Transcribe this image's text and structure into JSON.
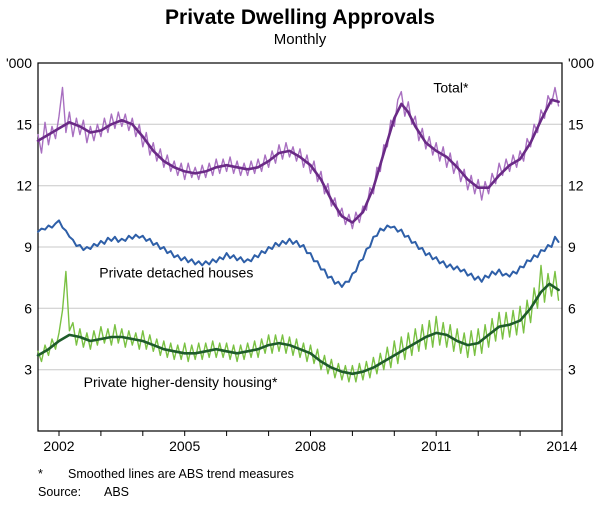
{
  "footnotes": {
    "marker": "*",
    "note": "Smoothed lines are ABS trend measures",
    "source_label": "Source:",
    "source_value": "ABS"
  },
  "chart_data": {
    "type": "line",
    "title": "Private Dwelling Approvals",
    "subtitle": "Monthly",
    "unit_left": "'000",
    "unit_right": "'000",
    "ylim": [
      0,
      18
    ],
    "yticks": [
      3,
      6,
      9,
      12,
      15
    ],
    "xlim": [
      2001.5,
      2014.0
    ],
    "xticks": [
      2002,
      2005,
      2008,
      2011,
      2014
    ],
    "grid_color": "#c8c8c8",
    "x_start": 2001.5,
    "x_step": 0.0833333,
    "series": [
      {
        "id": "total-monthly",
        "name": "Total (monthly)",
        "color": "#a86fc0",
        "width": 1.4,
        "values": [
          14.5,
          13.6,
          15.1,
          14.0,
          14.9,
          14.3,
          15.4,
          16.8,
          14.6,
          15.6,
          14.4,
          15.3,
          14.5,
          15.2,
          14.1,
          14.9,
          14.2,
          15.0,
          14.4,
          15.3,
          14.6,
          15.5,
          14.8,
          15.6,
          14.9,
          15.5,
          14.7,
          15.3,
          14.4,
          15.0,
          13.9,
          14.6,
          13.5,
          14.1,
          13.2,
          13.8,
          12.9,
          13.5,
          12.7,
          13.2,
          12.5,
          13.1,
          12.3,
          13.1,
          12.4,
          12.9,
          12.3,
          13.0,
          12.4,
          13.1,
          12.5,
          13.3,
          12.6,
          13.3,
          12.7,
          13.4,
          12.6,
          13.2,
          12.5,
          13.1,
          12.5,
          13.2,
          12.6,
          13.3,
          12.7,
          13.5,
          12.9,
          13.7,
          13.1,
          14.0,
          13.3,
          14.1,
          13.4,
          13.9,
          13.2,
          13.8,
          12.9,
          13.5,
          12.6,
          13.2,
          12.2,
          12.7,
          11.6,
          12.1,
          11.0,
          11.4,
          10.5,
          10.9,
          10.1,
          10.6,
          9.9,
          10.7,
          10.2,
          11.0,
          10.8,
          11.9,
          11.6,
          12.9,
          12.7,
          14.0,
          13.9,
          15.2,
          14.9,
          16.2,
          16.6,
          15.4,
          16.1,
          15.0,
          15.4,
          14.2,
          14.8,
          13.8,
          14.4,
          13.5,
          14.1,
          13.2,
          13.9,
          12.9,
          13.6,
          12.6,
          13.2,
          12.2,
          12.8,
          11.8,
          12.5,
          11.6,
          12.3,
          11.3,
          12.2,
          11.6,
          12.6,
          12.1,
          13.1,
          12.5,
          13.3,
          12.7,
          13.5,
          12.9,
          13.7,
          13.2,
          14.3,
          13.9,
          15.0,
          14.6,
          15.7,
          15.3,
          16.4,
          16.0,
          16.8,
          15.9
        ]
      },
      {
        "id": "total-trend",
        "name": "Total (ABS trend)",
        "color": "#6a2a86",
        "width": 2.6,
        "points": [
          [
            2001.5,
            14.2
          ],
          [
            2001.75,
            14.5
          ],
          [
            2002.0,
            14.8
          ],
          [
            2002.25,
            15.1
          ],
          [
            2002.5,
            14.9
          ],
          [
            2002.75,
            14.6
          ],
          [
            2003.0,
            14.7
          ],
          [
            2003.25,
            15.0
          ],
          [
            2003.5,
            15.2
          ],
          [
            2003.75,
            15.0
          ],
          [
            2004.0,
            14.4
          ],
          [
            2004.25,
            13.7
          ],
          [
            2004.5,
            13.2
          ],
          [
            2004.75,
            12.9
          ],
          [
            2005.0,
            12.7
          ],
          [
            2005.25,
            12.6
          ],
          [
            2005.5,
            12.7
          ],
          [
            2005.75,
            12.9
          ],
          [
            2006.0,
            13.0
          ],
          [
            2006.25,
            12.9
          ],
          [
            2006.5,
            12.8
          ],
          [
            2006.75,
            12.9
          ],
          [
            2007.0,
            13.2
          ],
          [
            2007.25,
            13.6
          ],
          [
            2007.5,
            13.7
          ],
          [
            2007.75,
            13.4
          ],
          [
            2008.0,
            13.0
          ],
          [
            2008.25,
            12.3
          ],
          [
            2008.5,
            11.3
          ],
          [
            2008.75,
            10.5
          ],
          [
            2009.0,
            10.2
          ],
          [
            2009.25,
            10.7
          ],
          [
            2009.5,
            11.9
          ],
          [
            2009.75,
            13.6
          ],
          [
            2010.0,
            15.3
          ],
          [
            2010.17,
            16.0
          ],
          [
            2010.33,
            15.6
          ],
          [
            2010.5,
            14.9
          ],
          [
            2010.75,
            14.1
          ],
          [
            2011.0,
            13.7
          ],
          [
            2011.25,
            13.4
          ],
          [
            2011.5,
            12.9
          ],
          [
            2011.75,
            12.3
          ],
          [
            2012.0,
            11.9
          ],
          [
            2012.25,
            11.9
          ],
          [
            2012.5,
            12.5
          ],
          [
            2012.75,
            13.0
          ],
          [
            2013.0,
            13.3
          ],
          [
            2013.25,
            14.1
          ],
          [
            2013.5,
            15.2
          ],
          [
            2013.75,
            16.2
          ],
          [
            2013.92,
            16.1
          ]
        ]
      },
      {
        "id": "detached",
        "name": "Private detached houses",
        "color": "#2e5fa8",
        "width": 2.0,
        "values": [
          9.75,
          9.9,
          9.85,
          10.05,
          9.95,
          10.15,
          10.3,
          9.95,
          9.8,
          9.5,
          9.35,
          9.05,
          9.1,
          8.85,
          9.0,
          8.9,
          9.15,
          9.05,
          9.3,
          9.15,
          9.45,
          9.3,
          9.5,
          9.25,
          9.4,
          9.3,
          9.55,
          9.4,
          9.6,
          9.45,
          9.55,
          9.3,
          9.4,
          9.1,
          9.2,
          8.9,
          9.0,
          8.7,
          8.8,
          8.5,
          8.6,
          8.35,
          8.5,
          8.25,
          8.4,
          8.15,
          8.3,
          8.1,
          8.3,
          8.15,
          8.4,
          8.25,
          8.5,
          8.4,
          8.7,
          8.45,
          8.6,
          8.35,
          8.5,
          8.25,
          8.4,
          8.3,
          8.6,
          8.5,
          8.8,
          8.7,
          9.0,
          8.9,
          9.2,
          9.05,
          9.3,
          9.15,
          9.4,
          9.15,
          9.3,
          9.0,
          9.1,
          8.7,
          8.7,
          8.3,
          8.3,
          7.9,
          7.9,
          7.5,
          7.55,
          7.2,
          7.3,
          7.05,
          7.3,
          7.3,
          7.7,
          7.8,
          8.3,
          8.4,
          8.9,
          9.0,
          9.5,
          9.55,
          9.9,
          9.8,
          10.05,
          9.95,
          10.0,
          9.75,
          9.85,
          9.5,
          9.55,
          9.2,
          9.25,
          8.9,
          8.95,
          8.6,
          8.7,
          8.4,
          8.5,
          8.2,
          8.3,
          8.0,
          8.15,
          7.9,
          8.05,
          7.8,
          7.9,
          7.6,
          7.7,
          7.4,
          7.55,
          7.3,
          7.6,
          7.5,
          7.8,
          7.65,
          7.9,
          7.6,
          7.7,
          7.55,
          7.8,
          7.7,
          8.05,
          8.0,
          8.35,
          8.3,
          8.6,
          8.5,
          8.85,
          8.8,
          9.1,
          9.0,
          9.5,
          9.25
        ]
      },
      {
        "id": "hd-monthly",
        "name": "Private higher-density housing (monthly)",
        "color": "#7ac143",
        "width": 1.4,
        "values": [
          3.9,
          3.4,
          4.2,
          3.7,
          4.5,
          4.0,
          4.8,
          5.9,
          7.8,
          4.9,
          5.3,
          4.2,
          5.0,
          4.1,
          4.8,
          4.0,
          4.9,
          4.2,
          5.1,
          4.3,
          5.0,
          4.2,
          5.2,
          4.3,
          5.0,
          4.1,
          4.9,
          4.2,
          4.8,
          4.0,
          4.9,
          4.0,
          4.7,
          3.9,
          4.5,
          3.7,
          4.4,
          3.6,
          4.3,
          3.5,
          4.2,
          3.5,
          4.3,
          3.4,
          4.2,
          3.5,
          4.3,
          3.5,
          4.3,
          3.6,
          4.4,
          3.6,
          4.3,
          3.6,
          4.3,
          3.5,
          4.2,
          3.4,
          4.2,
          3.5,
          4.3,
          3.6,
          4.4,
          3.6,
          4.5,
          3.8,
          4.7,
          3.8,
          4.7,
          3.9,
          4.7,
          3.8,
          4.6,
          3.7,
          4.5,
          3.6,
          4.3,
          3.4,
          4.2,
          3.3,
          4.0,
          3.0,
          3.7,
          2.8,
          3.5,
          2.6,
          3.3,
          2.5,
          3.2,
          2.4,
          3.2,
          2.4,
          3.3,
          2.5,
          3.4,
          2.6,
          3.6,
          2.8,
          3.8,
          3.0,
          4.1,
          3.1,
          4.4,
          3.3,
          4.6,
          3.5,
          4.8,
          3.7,
          5.0,
          3.9,
          5.2,
          4.0,
          5.4,
          4.1,
          5.6,
          4.2,
          5.3,
          4.1,
          5.2,
          3.9,
          5.0,
          3.8,
          4.8,
          3.6,
          4.9,
          3.7,
          5.0,
          3.8,
          5.2,
          4.1,
          5.5,
          4.4,
          5.8,
          4.5,
          5.8,
          4.6,
          5.9,
          4.7,
          6.1,
          4.8,
          6.4,
          5.3,
          7.0,
          6.0,
          8.1,
          6.3,
          7.7,
          6.6,
          7.8,
          6.4
        ]
      },
      {
        "id": "hd-trend",
        "name": "Private higher-density housing (ABS trend)",
        "color": "#1e5c2a",
        "width": 2.6,
        "points": [
          [
            2001.5,
            3.7
          ],
          [
            2001.75,
            4.0
          ],
          [
            2002.0,
            4.4
          ],
          [
            2002.25,
            4.7
          ],
          [
            2002.5,
            4.6
          ],
          [
            2002.75,
            4.4
          ],
          [
            2003.0,
            4.5
          ],
          [
            2003.25,
            4.6
          ],
          [
            2003.5,
            4.6
          ],
          [
            2003.75,
            4.5
          ],
          [
            2004.0,
            4.4
          ],
          [
            2004.25,
            4.2
          ],
          [
            2004.5,
            4.0
          ],
          [
            2004.75,
            3.9
          ],
          [
            2005.0,
            3.8
          ],
          [
            2005.25,
            3.8
          ],
          [
            2005.5,
            3.9
          ],
          [
            2005.75,
            4.0
          ],
          [
            2006.0,
            3.9
          ],
          [
            2006.25,
            3.8
          ],
          [
            2006.5,
            3.9
          ],
          [
            2006.75,
            4.0
          ],
          [
            2007.0,
            4.2
          ],
          [
            2007.25,
            4.3
          ],
          [
            2007.5,
            4.2
          ],
          [
            2007.75,
            4.0
          ],
          [
            2008.0,
            3.8
          ],
          [
            2008.25,
            3.4
          ],
          [
            2008.5,
            3.1
          ],
          [
            2008.75,
            2.9
          ],
          [
            2009.0,
            2.8
          ],
          [
            2009.25,
            2.9
          ],
          [
            2009.5,
            3.1
          ],
          [
            2009.75,
            3.4
          ],
          [
            2010.0,
            3.7
          ],
          [
            2010.25,
            4.0
          ],
          [
            2010.5,
            4.3
          ],
          [
            2010.75,
            4.6
          ],
          [
            2011.0,
            4.8
          ],
          [
            2011.25,
            4.7
          ],
          [
            2011.5,
            4.4
          ],
          [
            2011.75,
            4.2
          ],
          [
            2012.0,
            4.3
          ],
          [
            2012.25,
            4.7
          ],
          [
            2012.5,
            5.1
          ],
          [
            2012.75,
            5.2
          ],
          [
            2013.0,
            5.4
          ],
          [
            2013.25,
            6.0
          ],
          [
            2013.5,
            6.8
          ],
          [
            2013.7,
            7.2
          ],
          [
            2013.92,
            6.9
          ]
        ]
      }
    ],
    "annotations": [
      {
        "id": "label-total",
        "text": "Total*",
        "x": 2011.35,
        "y": 16.55,
        "color": "#9455ad"
      },
      {
        "id": "label-detached",
        "text": "Private detached houses",
        "x": 2004.8,
        "y": 7.5,
        "color": "#2e5fa8"
      },
      {
        "id": "label-hd",
        "text": "Private higher-density housing*",
        "x": 2004.9,
        "y": 2.15,
        "color": "#7ac143"
      }
    ]
  }
}
